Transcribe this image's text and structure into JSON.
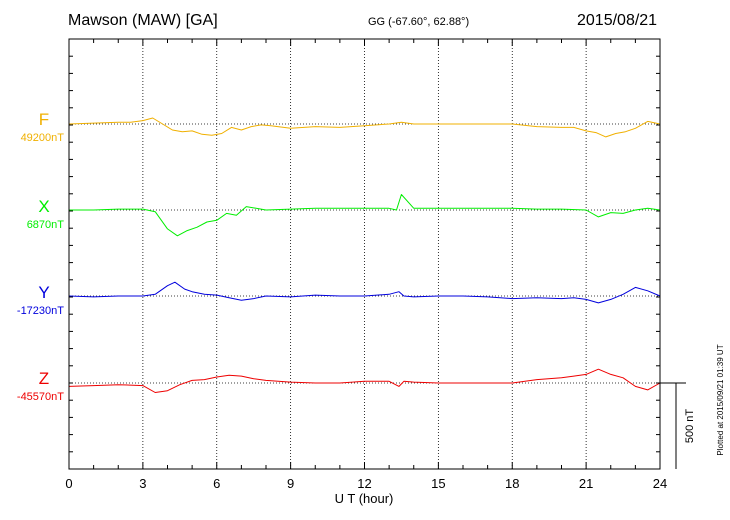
{
  "header": {
    "station": "Mawson (MAW)  [GA]",
    "coords": "GG (-67.60°,  62.88°)",
    "date": "2015/08/21"
  },
  "footer": {
    "plotted_note": "Plotted at 2015/09/21 01:39 UT",
    "scale_label": "500 nT"
  },
  "colors": {
    "F": "#f0b000",
    "X": "#00ee00",
    "Y": "#0000dd",
    "Z": "#ee0000"
  },
  "chart_data": {
    "type": "line",
    "title": "Mawson (MAW)  [GA]",
    "xlabel": "U T (hour)",
    "ylabel": "",
    "xlim": [
      0,
      24
    ],
    "xticks": [
      "0",
      "3",
      "6",
      "9",
      "12",
      "15",
      "18",
      "21",
      "24"
    ],
    "grid": true,
    "scale_bar_nT": 500,
    "series": [
      {
        "name": "F",
        "base_label": "49200nT",
        "unit": "nT",
        "x": [
          0,
          1,
          2,
          2.5,
          3,
          3.4,
          3.8,
          4.2,
          4.6,
          5.0,
          5.4,
          5.8,
          6.2,
          6.6,
          7.0,
          7.4,
          7.8,
          8.2,
          9,
          10,
          11,
          12,
          13,
          13.5,
          14,
          15,
          16,
          17,
          18,
          19,
          20,
          20.5,
          21,
          21.4,
          21.8,
          22.2,
          22.6,
          23,
          23.5,
          24
        ],
        "y": [
          0,
          5,
          10,
          10,
          20,
          35,
          0,
          -35,
          -45,
          -40,
          -60,
          -65,
          -55,
          -20,
          -35,
          -15,
          -5,
          -10,
          -25,
          -15,
          -20,
          -10,
          0,
          10,
          0,
          0,
          0,
          0,
          0,
          -15,
          -20,
          -20,
          -40,
          -50,
          -75,
          -55,
          -45,
          -25,
          15,
          0
        ]
      },
      {
        "name": "X",
        "base_label": "6870nT",
        "unit": "nT",
        "x": [
          0,
          1,
          2,
          3,
          3.5,
          4.0,
          4.4,
          4.8,
          5.2,
          5.6,
          6.0,
          6.4,
          6.8,
          7.2,
          7.6,
          8,
          9,
          10,
          11,
          12,
          13,
          13.3,
          13.5,
          14,
          15,
          16,
          17,
          18,
          19,
          20,
          21,
          21.5,
          22,
          22.5,
          23,
          23.5,
          24
        ],
        "y": [
          0,
          0,
          5,
          5,
          -10,
          -110,
          -150,
          -120,
          -100,
          -70,
          -60,
          -20,
          -30,
          20,
          10,
          0,
          5,
          10,
          10,
          10,
          10,
          0,
          90,
          10,
          10,
          10,
          10,
          10,
          5,
          5,
          0,
          -40,
          -15,
          -20,
          0,
          10,
          0
        ]
      },
      {
        "name": "Y",
        "base_label": "-17230nT",
        "unit": "nT",
        "x": [
          0,
          1,
          2,
          3,
          3.5,
          4.0,
          4.3,
          4.7,
          5.0,
          5.5,
          6.0,
          6.5,
          7.0,
          7.5,
          8.0,
          9,
          10,
          11,
          12,
          13,
          13.4,
          13.6,
          14,
          15,
          16,
          17,
          18,
          19,
          20,
          20.5,
          21,
          21.5,
          22,
          22.5,
          23,
          23.5,
          24
        ],
        "y": [
          0,
          -5,
          0,
          0,
          10,
          60,
          80,
          40,
          25,
          10,
          5,
          -10,
          -25,
          -15,
          0,
          -5,
          5,
          0,
          0,
          10,
          25,
          0,
          -5,
          0,
          0,
          -5,
          -15,
          -10,
          -15,
          -10,
          -20,
          -40,
          -20,
          10,
          50,
          30,
          0
        ]
      },
      {
        "name": "Z",
        "base_label": "-45570nT",
        "unit": "nT",
        "x": [
          0,
          1,
          2,
          3,
          3.5,
          4.0,
          4.5,
          5.0,
          5.5,
          6.0,
          6.5,
          7.0,
          7.5,
          8,
          9,
          10,
          11,
          12,
          13,
          13.4,
          13.6,
          14,
          15,
          16,
          17,
          18,
          19,
          20,
          20.5,
          21,
          21.5,
          22,
          22.5,
          23,
          23.5,
          24
        ],
        "y": [
          -20,
          -15,
          -10,
          -15,
          -55,
          -45,
          -10,
          15,
          20,
          35,
          45,
          40,
          25,
          15,
          5,
          0,
          0,
          10,
          10,
          -20,
          10,
          5,
          0,
          0,
          0,
          0,
          20,
          30,
          40,
          50,
          80,
          50,
          30,
          -20,
          -40,
          0
        ]
      }
    ]
  }
}
